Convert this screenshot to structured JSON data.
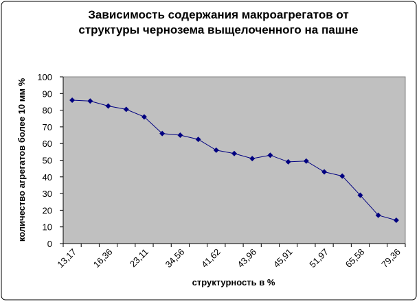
{
  "chart_data": {
    "type": "line",
    "title": [
      "Зависимость содержания макроагрегатов от",
      "структуры чернозема выщелоченного на пашне"
    ],
    "x_label": "структурность в %",
    "y_label": "количество агрегатов более 10 мм %",
    "categories": [
      "13,17",
      null,
      "16,36",
      null,
      "23,11",
      null,
      "34,56",
      null,
      "41,62",
      null,
      "43,96",
      null,
      "45,91",
      null,
      "51,97",
      null,
      "65,58",
      null,
      "79,36"
    ],
    "values": [
      86,
      85.5,
      82.5,
      80.5,
      76,
      66,
      65,
      62.5,
      56,
      54,
      51,
      53,
      49,
      49.5,
      43,
      40.5,
      29,
      17,
      14
    ],
    "color": "#000080",
    "plot_background": "#c0c0c0",
    "ylim": [
      0,
      100
    ],
    "yticks": [
      0,
      10,
      20,
      30,
      40,
      50,
      60,
      70,
      80,
      90,
      100
    ]
  }
}
